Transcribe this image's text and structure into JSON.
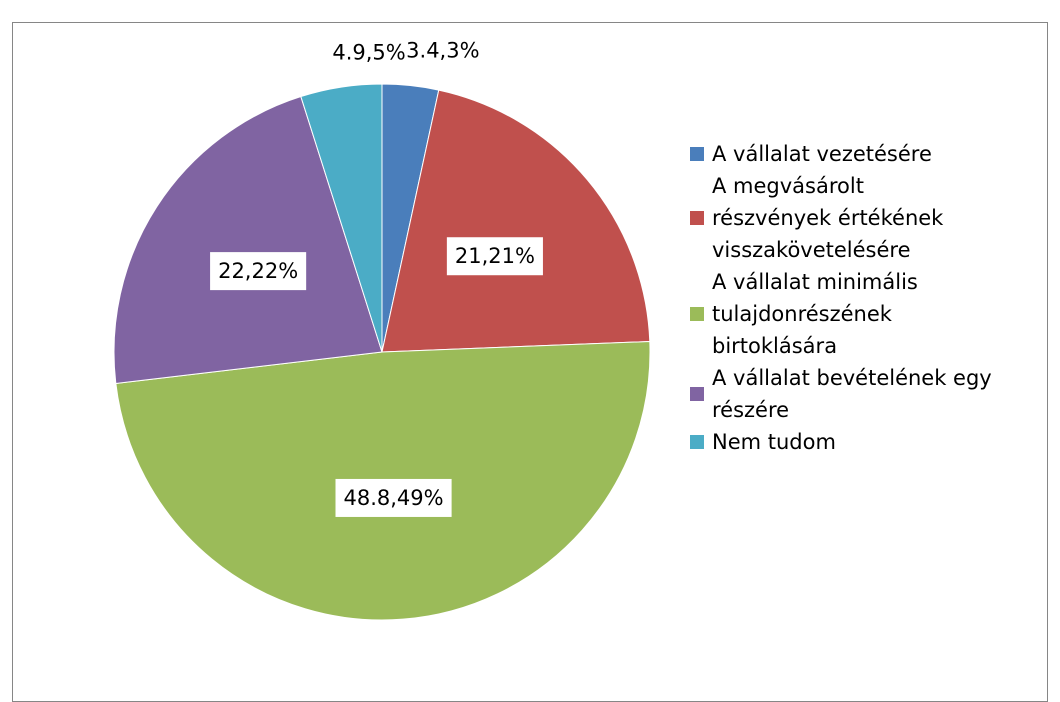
{
  "chart_data": {
    "type": "pie",
    "categories": [
      "A vállalat vezetésére",
      "A megvásárolt részvények értékének visszakövetelésére",
      "A vállalat minimális tulajdonrészének birtoklására",
      "A vállalat bevételének egy részére",
      "Nem tudom"
    ],
    "values": [
      3.4,
      21,
      48.8,
      22,
      4.9
    ],
    "value_labels": [
      "3.4,3%",
      "21,21%",
      "48.8,49%",
      "22,22%",
      "4.9,5%"
    ],
    "colors": [
      "#4a7ebb",
      "#c0504d",
      "#9bbb59",
      "#8064a2",
      "#4bacc6"
    ],
    "legend": "right"
  }
}
